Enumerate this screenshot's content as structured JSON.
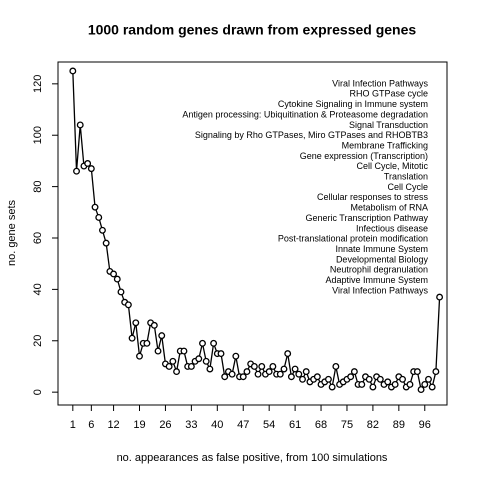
{
  "chart_data": {
    "type": "line",
    "title": "1000 random genes drawn from expressed genes",
    "x_label": "no. appearances as false positive, from 100 simulations",
    "y_label": "no. gene sets",
    "x": [
      1,
      2,
      3,
      4,
      5,
      6,
      7,
      8,
      9,
      10,
      11,
      12,
      13,
      14,
      15,
      16,
      17,
      18,
      19,
      20,
      21,
      22,
      23,
      24,
      25,
      26,
      27,
      28,
      29,
      30,
      31,
      32,
      33,
      34,
      35,
      36,
      37,
      38,
      39,
      40,
      41,
      42,
      43,
      44,
      45,
      46,
      47,
      48,
      49,
      50,
      51,
      52,
      53,
      54,
      55,
      56,
      57,
      58,
      59,
      60,
      61,
      62,
      63,
      64,
      65,
      66,
      67,
      68,
      69,
      70,
      71,
      72,
      73,
      74,
      75,
      76,
      77,
      78,
      79,
      80,
      81,
      82,
      83,
      84,
      85,
      86,
      87,
      88,
      89,
      90,
      91,
      92,
      93,
      94,
      95,
      96,
      97,
      98,
      99,
      100
    ],
    "values": [
      125,
      86,
      104,
      88,
      89,
      87,
      72,
      68,
      63,
      58,
      47,
      46,
      44,
      39,
      35,
      34,
      21,
      27,
      14,
      19,
      19,
      27,
      26,
      16,
      22,
      11,
      10,
      12,
      8,
      16,
      16,
      10,
      10,
      12,
      13,
      19,
      12,
      9,
      19,
      15,
      15,
      6,
      8,
      7,
      14,
      6,
      6,
      8,
      11,
      10,
      7,
      10,
      7,
      8,
      10,
      7,
      7,
      9,
      15,
      6,
      9,
      7,
      5,
      8,
      4,
      5,
      6,
      3,
      4,
      5,
      2,
      10,
      3,
      4,
      5,
      6,
      8,
      3,
      3,
      6,
      5,
      2,
      6,
      5,
      3,
      4,
      2,
      3,
      6,
      5,
      2,
      3,
      8,
      8,
      1,
      3,
      5,
      2,
      8,
      37
    ],
    "color": "#000000",
    "xlim": [
      -3,
      102
    ],
    "ylim": [
      -5,
      128.5
    ],
    "xticks": [
      1,
      6,
      12,
      19,
      26,
      33,
      40,
      47,
      54,
      61,
      68,
      75,
      82,
      89,
      96
    ],
    "yticks": [
      0,
      20,
      40,
      60,
      80,
      100,
      120
    ],
    "annotations": [
      "Viral Infection Pathways",
      "RHO GTPase cycle",
      "Cytokine Signaling in Immune system",
      "Antigen processing: Ubiquitination & Proteasome degradation",
      "Signal Transduction",
      "Signaling by Rho GTPases, Miro GTPases and RHOBTB3",
      "Membrane Trafficking",
      "Gene expression (Transcription)",
      "Cell Cycle, Mitotic",
      "Translation",
      "Cell Cycle",
      "Cellular responses to stress",
      "Metabolism of RNA",
      "Generic Transcription Pathway",
      "Infectious disease",
      "Post-translational protein modification",
      "Innate Immune System",
      "Developmental Biology",
      "Neutrophil degranulation",
      "Adaptive Immune System",
      "Viral Infection Pathways"
    ]
  }
}
